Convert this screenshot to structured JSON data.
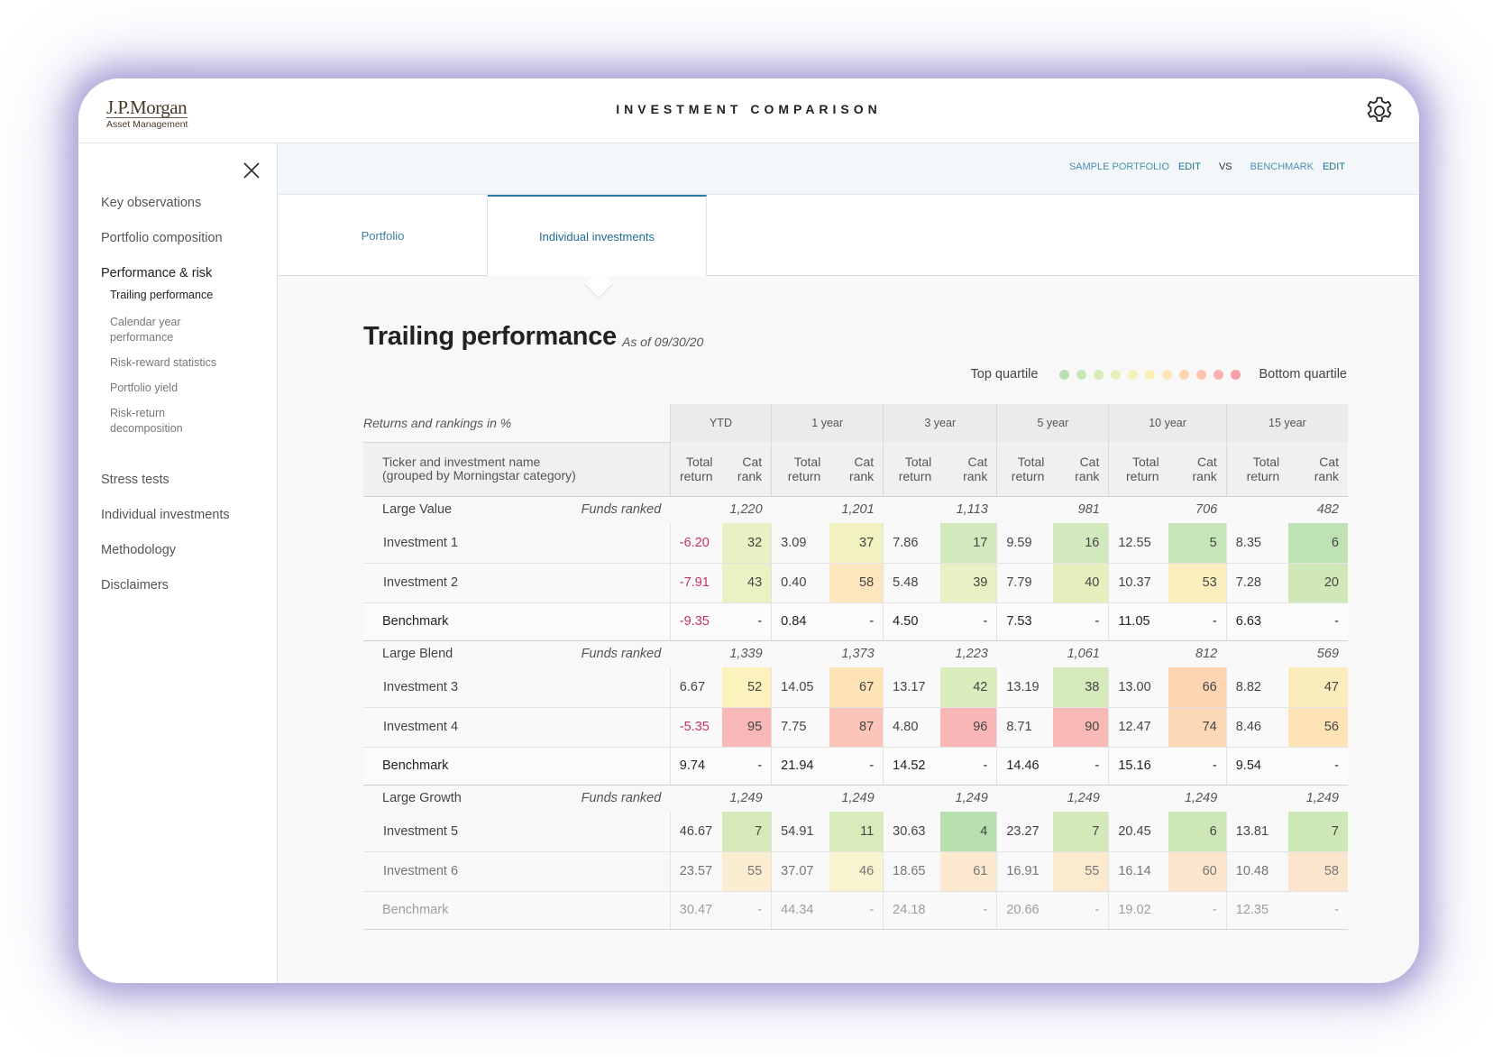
{
  "header": {
    "logo_main": "J.P.Morgan",
    "logo_sub": "Asset Management",
    "title": "INVESTMENT COMPARISON",
    "settings_icon": "gear-icon"
  },
  "sidebar": {
    "close_icon": "close-icon",
    "items": [
      {
        "label": "Key observations"
      },
      {
        "label": "Portfolio composition"
      },
      {
        "label": "Performance & risk",
        "active": true
      },
      {
        "label": "Stress tests"
      },
      {
        "label": "Individual investments"
      },
      {
        "label": "Methodology"
      },
      {
        "label": "Disclaimers"
      }
    ],
    "subitems": [
      {
        "label": "Trailing performance",
        "active": true
      },
      {
        "label": "Calendar year performance"
      },
      {
        "label": "Risk-reward statistics"
      },
      {
        "label": "Portfolio yield"
      },
      {
        "label": "Risk-return decomposition"
      }
    ]
  },
  "compare": {
    "portfolio_label": "SAMPLE PORTFOLIO",
    "edit1": "EDIT",
    "vs": "VS",
    "benchmark_label": "BENCHMARK",
    "edit2": "EDIT"
  },
  "tabs": [
    {
      "label": "Portfolio"
    },
    {
      "label": "Individual investments",
      "active": true
    }
  ],
  "section": {
    "title": "Trailing performance",
    "as_of": "As of 09/30/20"
  },
  "legend": {
    "top": "Top quartile",
    "bottom": "Bottom quartile",
    "colors": [
      "#b9e0b0",
      "#c9e6b6",
      "#d9ecb8",
      "#e8f0ba",
      "#f4f3bb",
      "#fbefb9",
      "#fde6b6",
      "#fdd6b0",
      "#fcc4ad",
      "#f9b1b0",
      "#f59fa6"
    ]
  },
  "table": {
    "caption": "Returns and rankings in %",
    "name_header_line1": "Ticker and investment name",
    "name_header_line2": "(grouped by Morningstar category)",
    "total_return_line1": "Total",
    "total_return_line2": "return",
    "cat_rank_line1": "Cat",
    "cat_rank_line2": "rank",
    "funds_ranked_label": "Funds ranked",
    "periods": [
      "YTD",
      "1 year",
      "3 year",
      "5 year",
      "10 year",
      "15 year"
    ],
    "groups": [
      {
        "name": "Large Value",
        "funds_ranked": [
          "1,220",
          "1,201",
          "1,113",
          "981",
          "706",
          "482"
        ],
        "rows": [
          {
            "name": "Investment 1",
            "type": "investment",
            "cells": [
              {
                "tr": "-6.20",
                "neg": true,
                "rank": "32",
                "color": "#e9f1c4"
              },
              {
                "tr": "3.09",
                "rank": "37",
                "color": "#f1f2bf"
              },
              {
                "tr": "7.86",
                "rank": "17",
                "color": "#d2e9bd"
              },
              {
                "tr": "9.59",
                "rank": "16",
                "color": "#d2e9bd"
              },
              {
                "tr": "12.55",
                "rank": "5",
                "color": "#c6e5b8"
              },
              {
                "tr": "8.35",
                "rank": "6",
                "color": "#bfe2b4"
              }
            ]
          },
          {
            "name": "Investment 2",
            "type": "investment",
            "cells": [
              {
                "tr": "-7.91",
                "neg": true,
                "rank": "43",
                "color": "#eaf1c3"
              },
              {
                "tr": "0.40",
                "rank": "58",
                "color": "#fde6bd"
              },
              {
                "tr": "5.48",
                "rank": "39",
                "color": "#eaf0c3"
              },
              {
                "tr": "7.79",
                "rank": "40",
                "color": "#e6efbd"
              },
              {
                "tr": "10.37",
                "rank": "53",
                "color": "#fbf0bd"
              },
              {
                "tr": "7.28",
                "rank": "20",
                "color": "#d0e8b8"
              }
            ]
          },
          {
            "name": "Benchmark",
            "type": "benchmark",
            "cells": [
              {
                "tr": "-9.35",
                "neg": true,
                "rank": "-"
              },
              {
                "tr": "0.84",
                "rank": "-"
              },
              {
                "tr": "4.50",
                "rank": "-"
              },
              {
                "tr": "7.53",
                "rank": "-"
              },
              {
                "tr": "11.05",
                "rank": "-"
              },
              {
                "tr": "6.63",
                "rank": "-"
              }
            ]
          }
        ]
      },
      {
        "name": "Large Blend",
        "funds_ranked": [
          "1,339",
          "1,373",
          "1,223",
          "1,061",
          "812",
          "569"
        ],
        "rows": [
          {
            "name": "Investment 3",
            "type": "investment",
            "cells": [
              {
                "tr": "6.67",
                "rank": "52",
                "color": "#fbf2bd"
              },
              {
                "tr": "14.05",
                "rank": "67",
                "color": "#fde3b6"
              },
              {
                "tr": "13.17",
                "rank": "42",
                "color": "#dcedbd"
              },
              {
                "tr": "13.19",
                "rank": "38",
                "color": "#d5eabb"
              },
              {
                "tr": "13.00",
                "rank": "66",
                "color": "#fdd5b3"
              },
              {
                "tr": "8.82",
                "rank": "47",
                "color": "#fbedbb"
              }
            ]
          },
          {
            "name": "Investment 4",
            "type": "investment",
            "cells": [
              {
                "tr": "-5.35",
                "neg": true,
                "rank": "95",
                "color": "#f8b8b8"
              },
              {
                "tr": "7.75",
                "rank": "87",
                "color": "#fbc6b9"
              },
              {
                "tr": "4.80",
                "rank": "96",
                "color": "#f9b6b6"
              },
              {
                "tr": "8.71",
                "rank": "90",
                "color": "#f9b9b7"
              },
              {
                "tr": "12.47",
                "rank": "74",
                "color": "#fdd8b6"
              },
              {
                "tr": "8.46",
                "rank": "56",
                "color": "#fde3b6"
              }
            ]
          },
          {
            "name": "Benchmark",
            "type": "benchmark",
            "cells": [
              {
                "tr": "9.74",
                "rank": "-"
              },
              {
                "tr": "21.94",
                "rank": "-"
              },
              {
                "tr": "14.52",
                "rank": "-"
              },
              {
                "tr": "14.46",
                "rank": "-"
              },
              {
                "tr": "15.16",
                "rank": "-"
              },
              {
                "tr": "9.54",
                "rank": "-"
              }
            ]
          }
        ]
      },
      {
        "name": "Large Growth",
        "funds_ranked": [
          "1,249",
          "1,249",
          "1,249",
          "1,249",
          "1,249",
          "1,249"
        ],
        "rows": [
          {
            "name": "Investment 5",
            "type": "investment",
            "cells": [
              {
                "tr": "46.67",
                "rank": "7",
                "color": "#d5eab8"
              },
              {
                "tr": "54.91",
                "rank": "11",
                "color": "#d8ebbb"
              },
              {
                "tr": "30.63",
                "rank": "4",
                "color": "#b8dfb0"
              },
              {
                "tr": "23.27",
                "rank": "7",
                "color": "#d3e9b9"
              },
              {
                "tr": "20.45",
                "rank": "6",
                "color": "#cde7b7"
              },
              {
                "tr": "13.81",
                "rank": "7",
                "color": "#cde7b7"
              }
            ]
          },
          {
            "name": "Investment 6",
            "type": "investment",
            "fade": 1,
            "cells": [
              {
                "tr": "23.57",
                "rank": "55",
                "color": "#fde9c2"
              },
              {
                "tr": "37.07",
                "rank": "46",
                "color": "#fbf2c2"
              },
              {
                "tr": "18.65",
                "rank": "61",
                "color": "#fde2bf"
              },
              {
                "tr": "16.91",
                "rank": "55",
                "color": "#fde6bf"
              },
              {
                "tr": "16.14",
                "rank": "60",
                "color": "#fde0bd"
              },
              {
                "tr": "10.48",
                "rank": "58",
                "color": "#fde0bd"
              }
            ]
          },
          {
            "name": "Benchmark",
            "type": "benchmark",
            "fade": 2,
            "cells": [
              {
                "tr": "30.47",
                "rank": "-"
              },
              {
                "tr": "44.34",
                "rank": "-"
              },
              {
                "tr": "24.18",
                "rank": "-"
              },
              {
                "tr": "20.66",
                "rank": "-"
              },
              {
                "tr": "19.02",
                "rank": "-"
              },
              {
                "tr": "12.35",
                "rank": "-"
              }
            ]
          }
        ]
      }
    ]
  }
}
